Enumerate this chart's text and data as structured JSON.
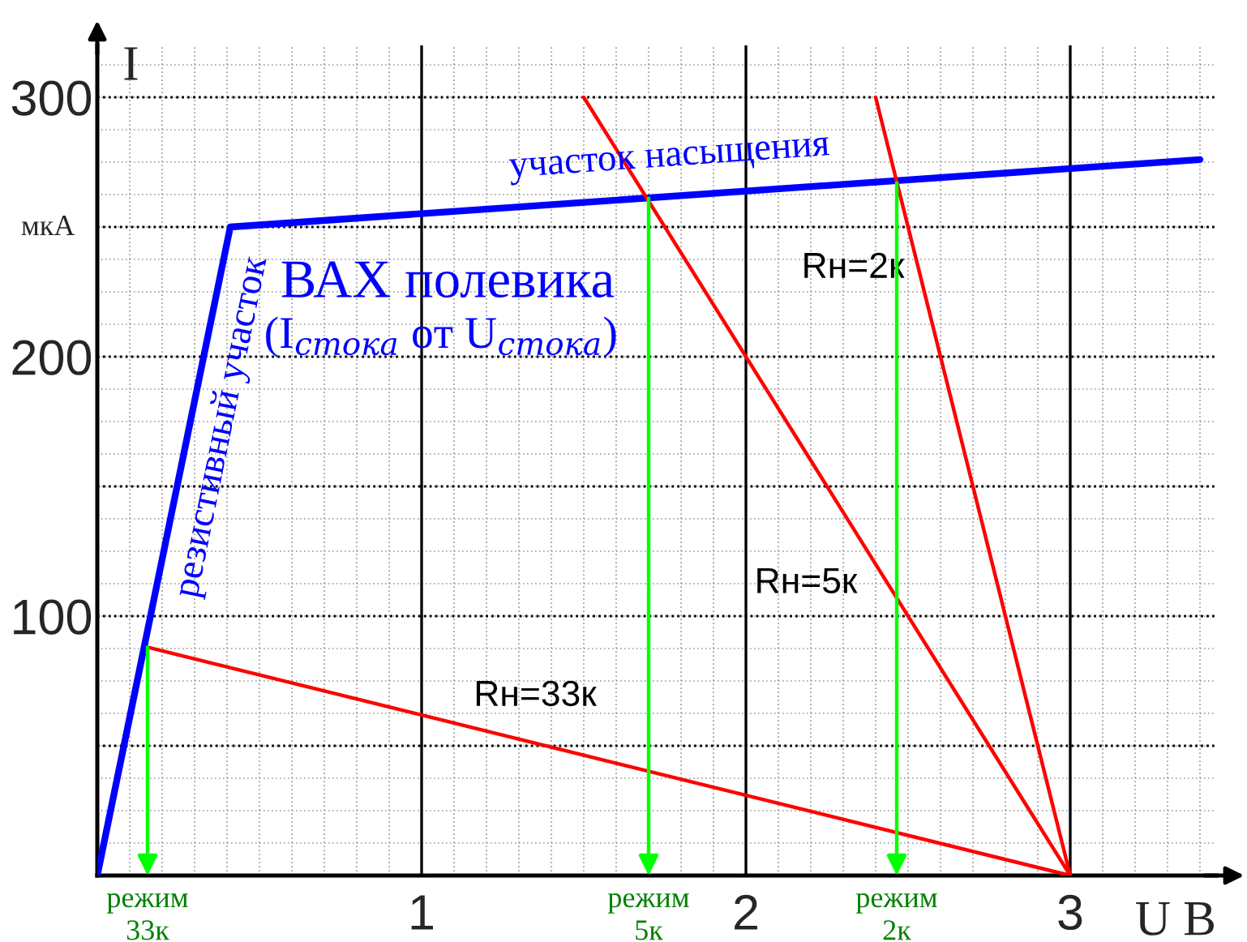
{
  "chart_data": {
    "type": "line",
    "xlabel": "U В",
    "ylabel": "I",
    "xlim": [
      0,
      3.45
    ],
    "ylim": [
      0,
      320
    ],
    "xticks": [
      1,
      2,
      3
    ],
    "yticks": [
      {
        "value": 50,
        "label": null
      },
      100,
      {
        "value": 150,
        "label": null
      },
      200,
      {
        "value": 250,
        "label": null
      },
      300
    ],
    "grid": true,
    "legend": false,
    "marker": "none",
    "line_style": "solid",
    "series": [
      {
        "name": "ВАХ полевика",
        "color": "#0000ff",
        "x": [
          0,
          0.41,
          3.4
        ],
        "values": [
          0,
          250,
          276
        ]
      },
      {
        "name": "Rн=33к",
        "color": "#ff0000",
        "x": [
          0.155,
          3
        ],
        "values": [
          88,
          0
        ]
      },
      {
        "name": "Rн=5к",
        "color": "#ff0000",
        "x": [
          1.5,
          3
        ],
        "values": [
          300,
          0
        ]
      },
      {
        "name": "Rн=2к",
        "color": "#ff0000",
        "x": [
          2.4,
          3
        ],
        "values": [
          300,
          0
        ]
      }
    ],
    "annotations": [
      "мкА",
      "(I$_{стока}$ от U$_{стока}$)",
      {
        "text": "участок насыщения",
        "x": 1.77,
        "y": 266
      },
      {
        "text": "резистивный участок",
        "x": 0.3,
        "y": 175
      },
      {
        "text": "режим\n33к",
        "x": 0.155,
        "y": 88
      },
      {
        "text": "режим\n5к",
        "x": 1.7,
        "y": 261
      },
      {
        "text": "режим\n2к",
        "x": 2.465,
        "y": 267
      }
    ]
  }
}
